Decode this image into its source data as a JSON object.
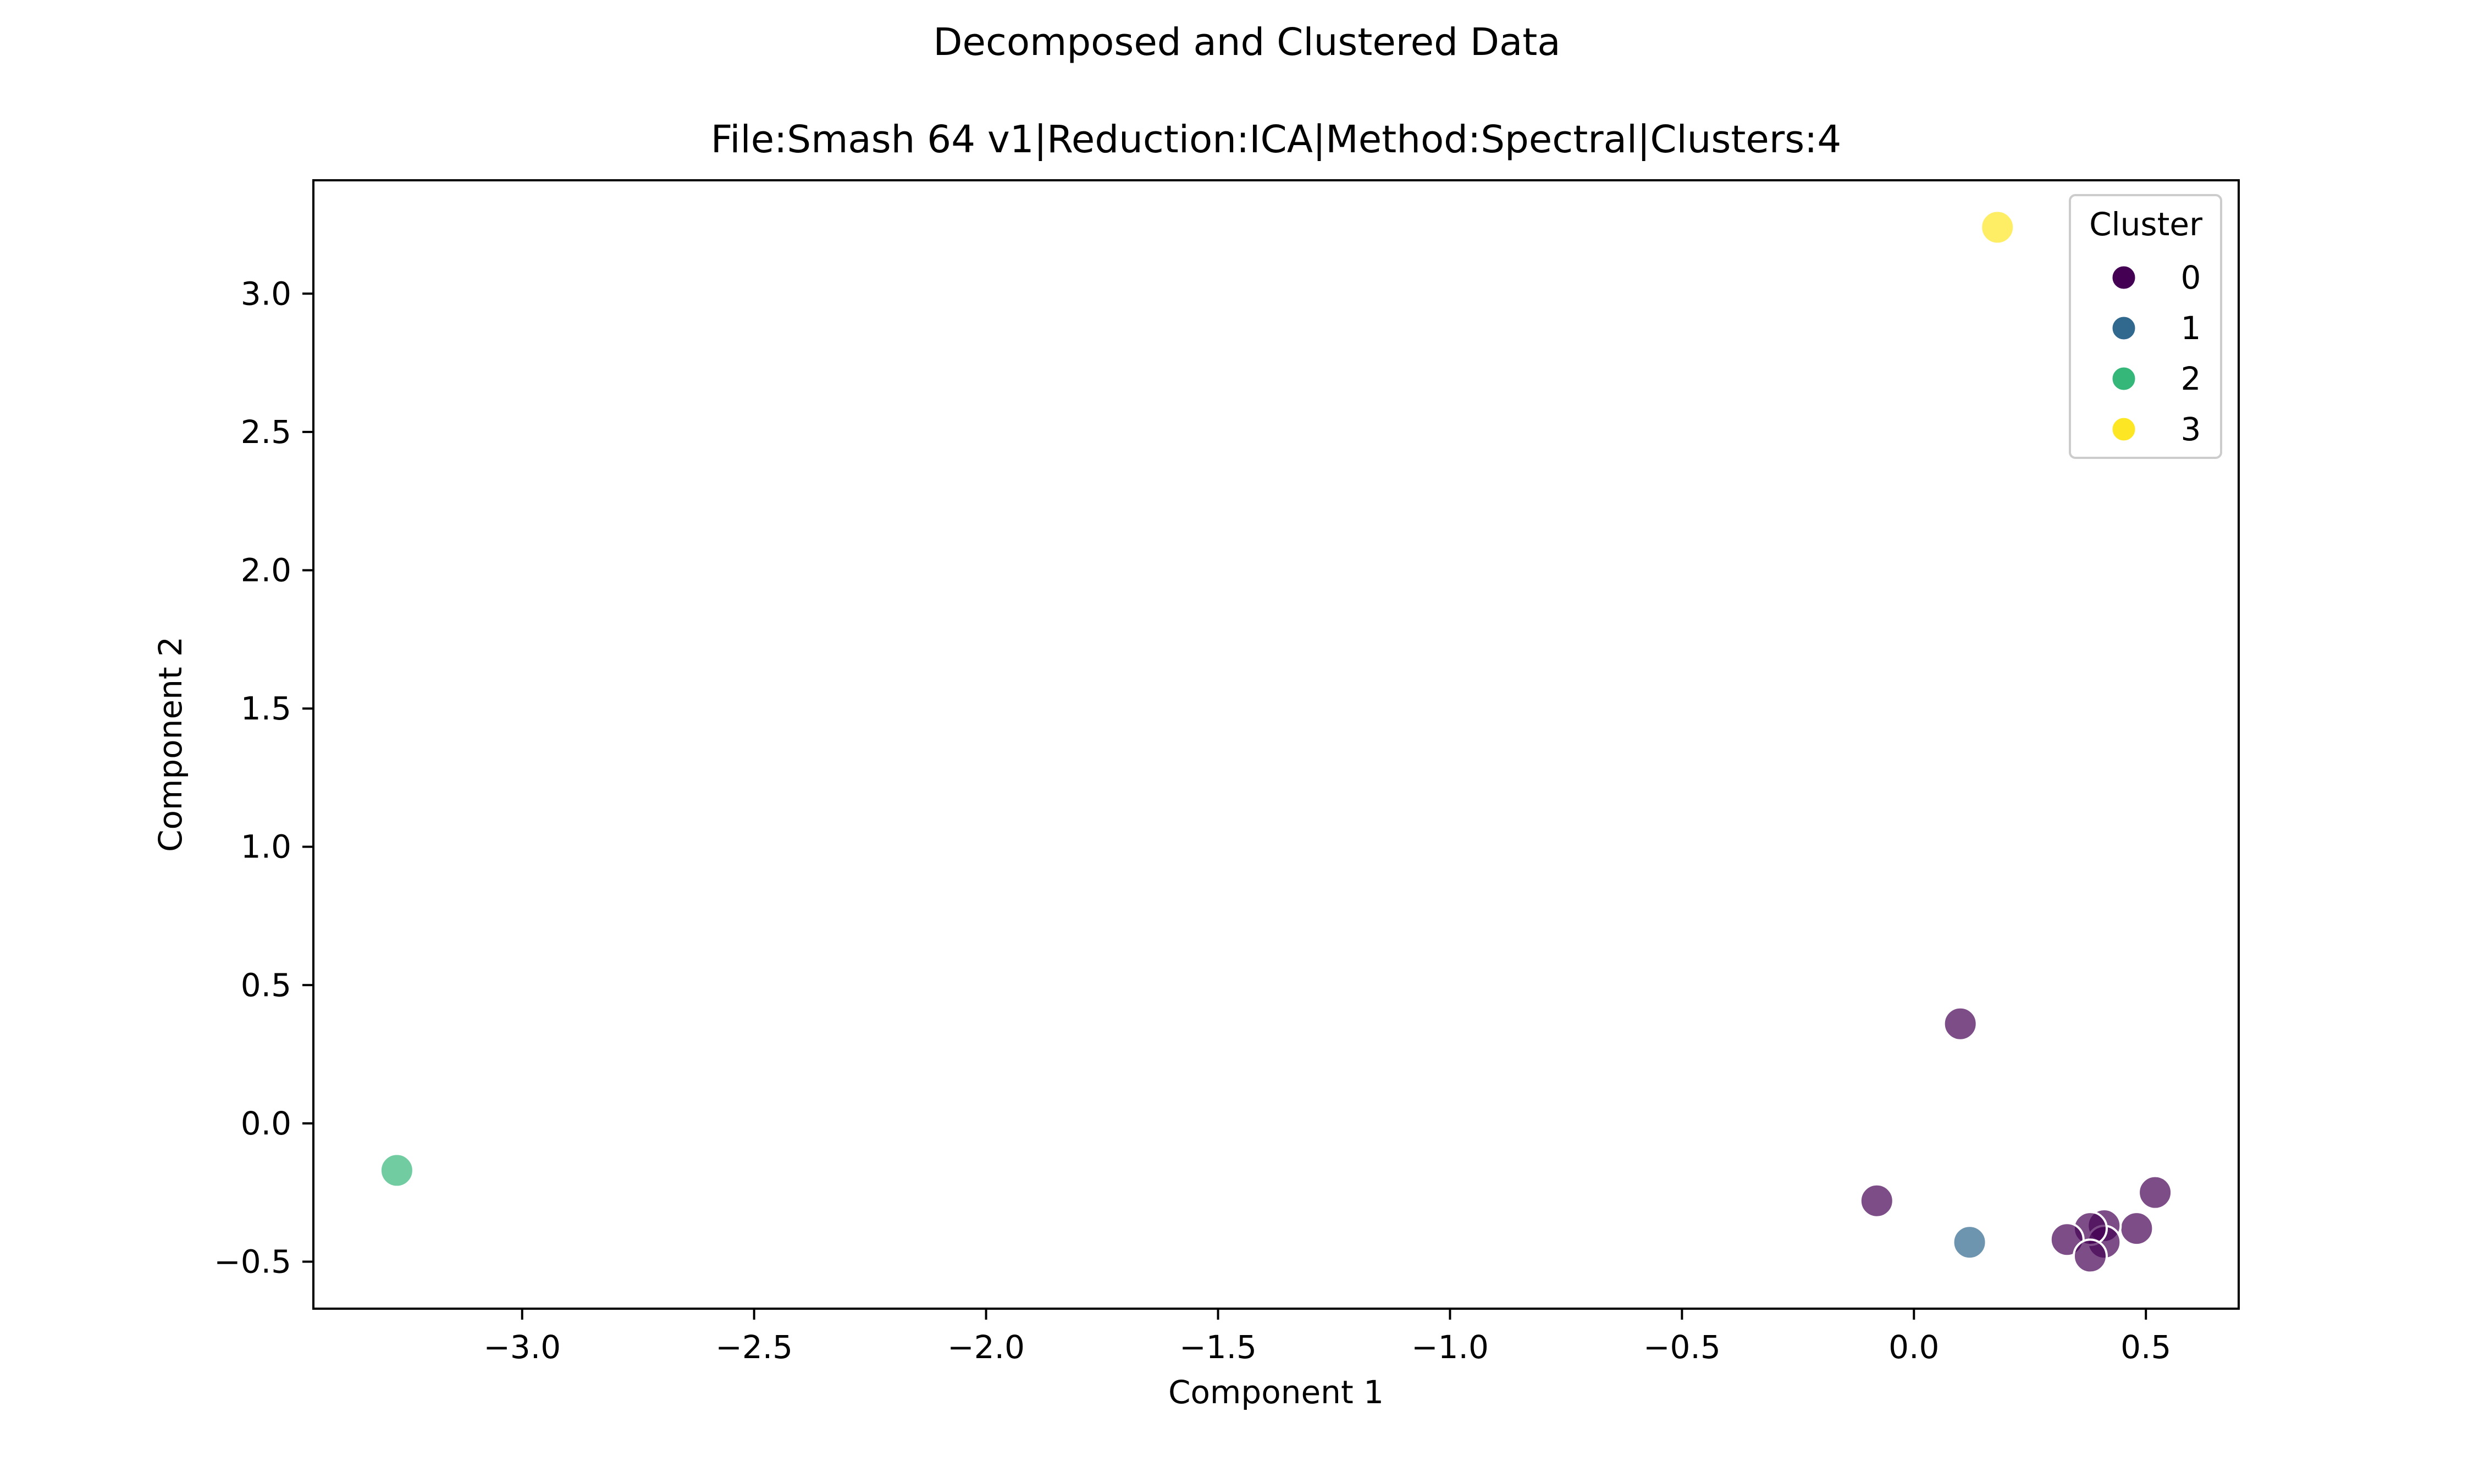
{
  "chart_data": {
    "type": "scatter",
    "suptitle": "Decomposed and Clustered Data",
    "title": "File:Smash 64 v1|Reduction:ICA|Method:Spectral|Clusters:4",
    "xlabel": "Component 1",
    "ylabel": "Component 2",
    "xlim": [
      -3.45,
      0.7
    ],
    "ylim": [
      -0.67,
      3.41
    ],
    "xticks": [
      -3.0,
      -2.5,
      -2.0,
      -1.5,
      -1.0,
      -0.5,
      0.0,
      0.5
    ],
    "yticks": [
      -0.5,
      0.0,
      0.5,
      1.0,
      1.5,
      2.0,
      2.5,
      3.0
    ],
    "xtick_labels": [
      "−3.0",
      "−2.5",
      "−2.0",
      "−1.5",
      "−1.0",
      "−0.5",
      "0.0",
      "0.5"
    ],
    "ytick_labels": [
      "−0.5",
      "0.0",
      "0.5",
      "1.0",
      "1.5",
      "2.0",
      "2.5",
      "3.0"
    ],
    "grid": false,
    "legend": {
      "title": "Cluster",
      "placement": "top-right",
      "entries": [
        "0",
        "1",
        "2",
        "3"
      ]
    },
    "colors": {
      "0": "#440154",
      "1": "#31688e",
      "2": "#35b779",
      "3": "#fde725"
    },
    "points": [
      {
        "x": 0.18,
        "y": 3.24,
        "cluster": "3"
      },
      {
        "x": 0.1,
        "y": 0.36,
        "cluster": "0"
      },
      {
        "x": -0.08,
        "y": -0.28,
        "cluster": "0"
      },
      {
        "x": 0.52,
        "y": -0.25,
        "cluster": "0"
      },
      {
        "x": 0.48,
        "y": -0.38,
        "cluster": "0"
      },
      {
        "x": 0.41,
        "y": -0.37,
        "cluster": "0"
      },
      {
        "x": 0.41,
        "y": -0.43,
        "cluster": "0"
      },
      {
        "x": 0.38,
        "y": -0.38,
        "cluster": "0"
      },
      {
        "x": 0.33,
        "y": -0.42,
        "cluster": "0"
      },
      {
        "x": 0.38,
        "y": -0.48,
        "cluster": "0"
      },
      {
        "x": 0.12,
        "y": -0.43,
        "cluster": "1"
      },
      {
        "x": -3.27,
        "y": -0.17,
        "cluster": "2"
      }
    ]
  }
}
